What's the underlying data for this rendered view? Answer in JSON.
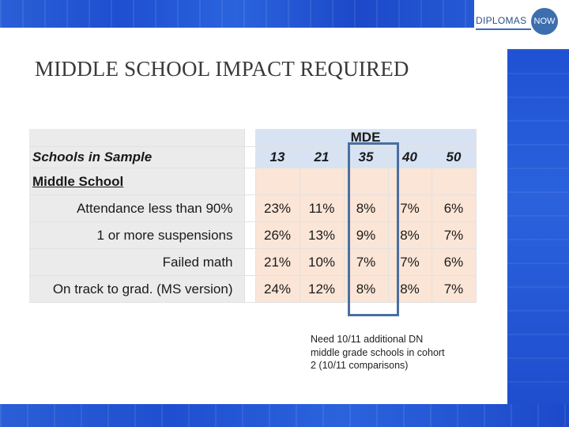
{
  "logo": {
    "brand": "DIPLOMAS",
    "circle": "NOW"
  },
  "title": "MIDDLE SCHOOL IMPACT REQUIRED",
  "table": {
    "group_header": "MDE",
    "sample_label": "Schools in Sample",
    "sample_sizes": [
      "13",
      "21",
      "35",
      "40",
      "50"
    ],
    "section_label": "Middle School",
    "rows": [
      {
        "label": "Attendance less than 90%",
        "values": [
          "23%",
          "11%",
          "8%",
          "7%",
          "6%"
        ]
      },
      {
        "label": "1 or more suspensions",
        "values": [
          "26%",
          "13%",
          "9%",
          "8%",
          "7%"
        ]
      },
      {
        "label": "Failed math",
        "values": [
          "21%",
          "10%",
          "7%",
          "7%",
          "6%"
        ]
      },
      {
        "label": "On track to grad. (MS version)",
        "values": [
          "24%",
          "12%",
          "8%",
          "8%",
          "7%"
        ]
      }
    ]
  },
  "note": "Need 10/11 additional DN middle grade schools in cohort 2 (10/11 comparisons)",
  "colors": {
    "band_blue": "#2559d4",
    "header_blue": "#d7e3f3",
    "body_peach": "#fbe5d6",
    "highlight": "#4a6fa0"
  }
}
